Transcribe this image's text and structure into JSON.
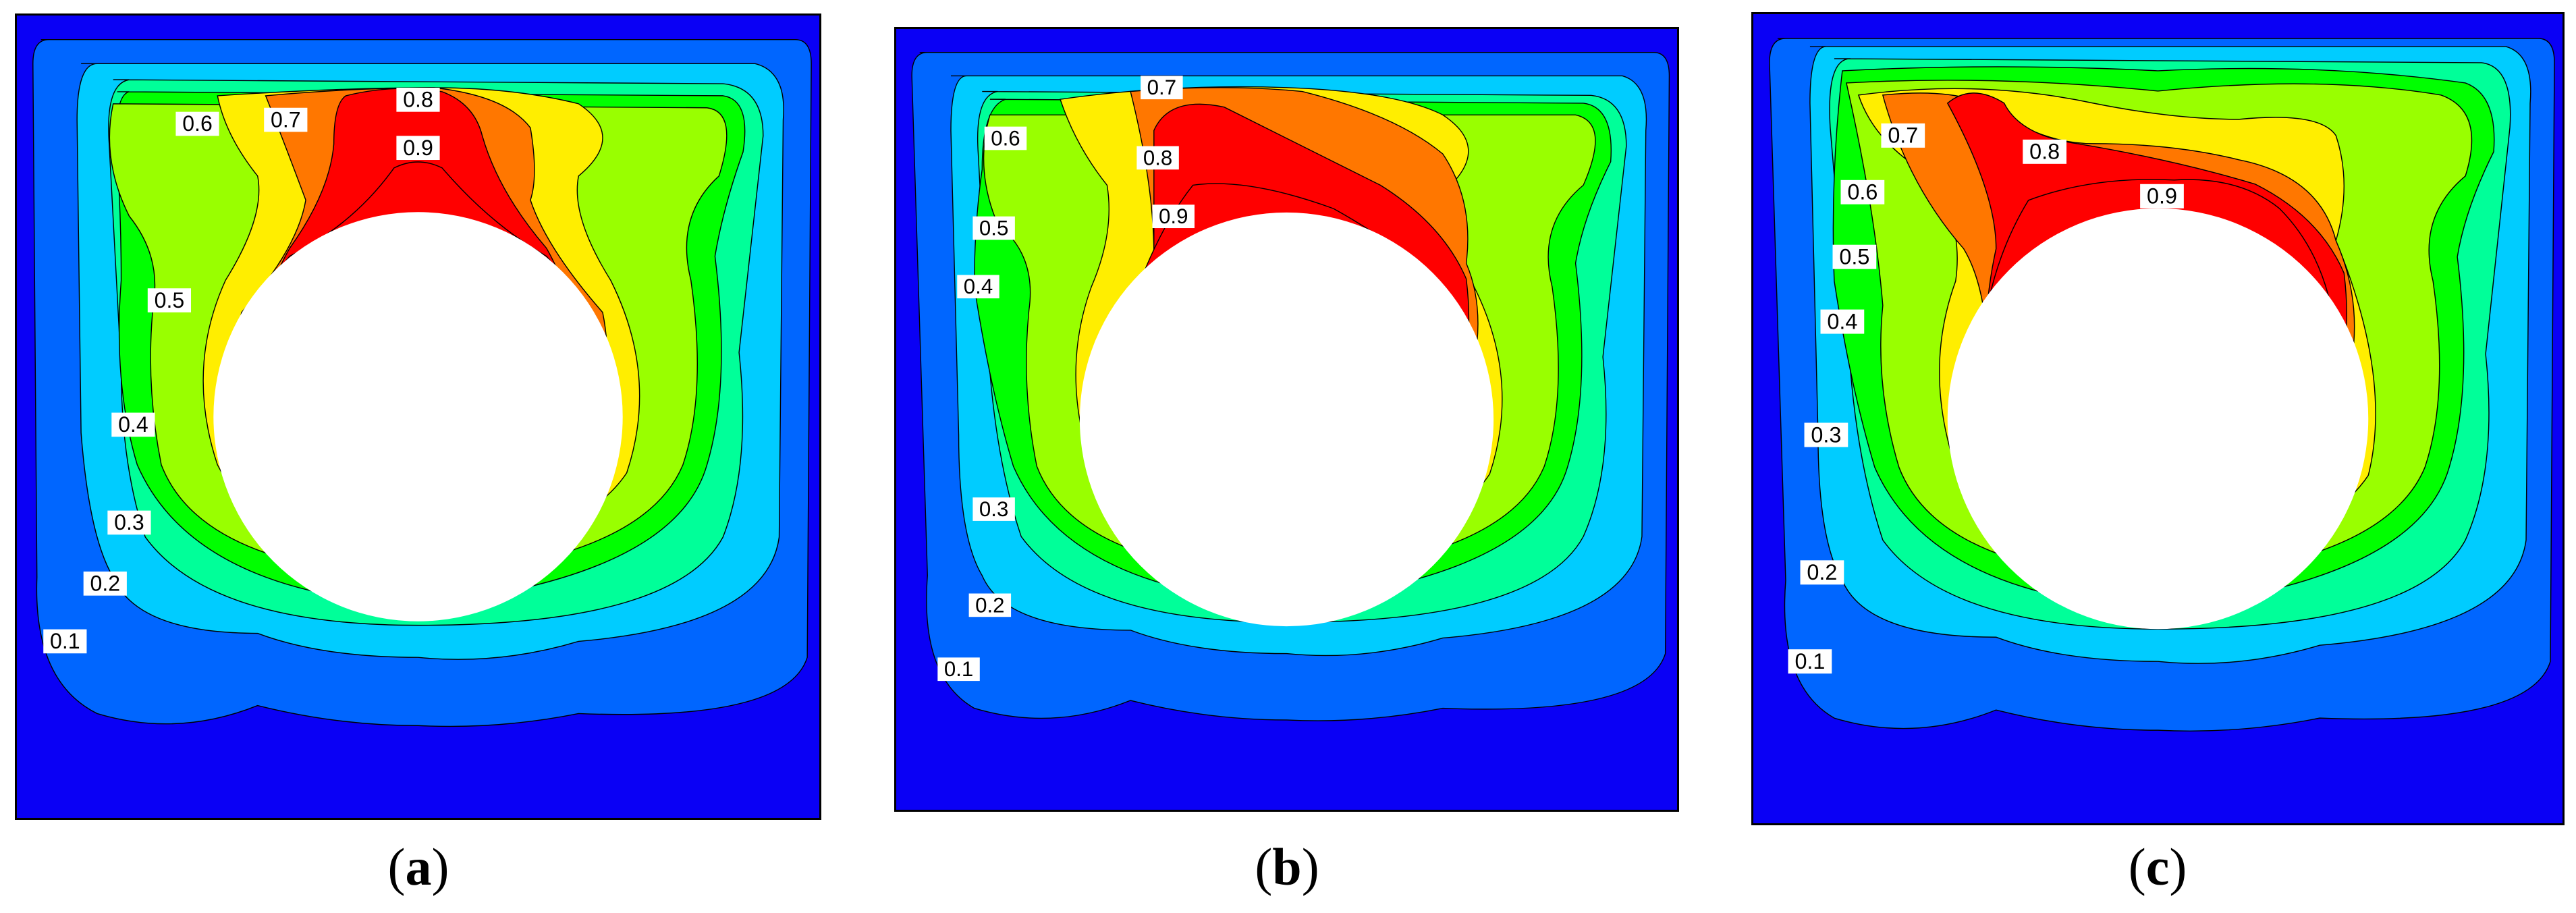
{
  "chart_data": [
    {
      "type": "contour",
      "caption": "a",
      "levels": [
        0.1,
        0.2,
        0.3,
        0.4,
        0.5,
        0.6,
        0.7,
        0.8,
        0.9
      ],
      "contour_labels": [
        "0.1",
        "0.2",
        "0.3",
        "0.4",
        "0.5",
        "0.6",
        "0.7",
        "0.8",
        "0.9"
      ],
      "colors": [
        "#0a00f5",
        "#0066ff",
        "#00ccff",
        "#00ff99",
        "#00ff00",
        "#99ff00",
        "#ffee00",
        "#ff7700",
        "#ff0000"
      ],
      "obstacle": "circle"
    },
    {
      "type": "contour",
      "caption": "b",
      "levels": [
        0.1,
        0.2,
        0.3,
        0.4,
        0.5,
        0.6,
        0.7,
        0.8,
        0.9
      ],
      "contour_labels": [
        "0.1",
        "0.2",
        "0.3",
        "0.4",
        "0.5",
        "0.6",
        "0.7",
        "0.8",
        "0.9"
      ],
      "colors": [
        "#0a00f5",
        "#0066ff",
        "#00ccff",
        "#00ff99",
        "#00ff00",
        "#99ff00",
        "#ffee00",
        "#ff7700",
        "#ff0000"
      ],
      "obstacle": "circle"
    },
    {
      "type": "contour",
      "caption": "c",
      "levels": [
        0.1,
        0.2,
        0.3,
        0.4,
        0.5,
        0.6,
        0.7,
        0.8,
        0.9
      ],
      "contour_labels": [
        "0.1",
        "0.2",
        "0.3",
        "0.4",
        "0.5",
        "0.6",
        "0.7",
        "0.8",
        "0.9"
      ],
      "colors": [
        "#0a00f5",
        "#0066ff",
        "#00ccff",
        "#00ff99",
        "#00ff00",
        "#99ff00",
        "#ffee00",
        "#ff7700",
        "#ff0000"
      ],
      "obstacle": "circle"
    }
  ]
}
